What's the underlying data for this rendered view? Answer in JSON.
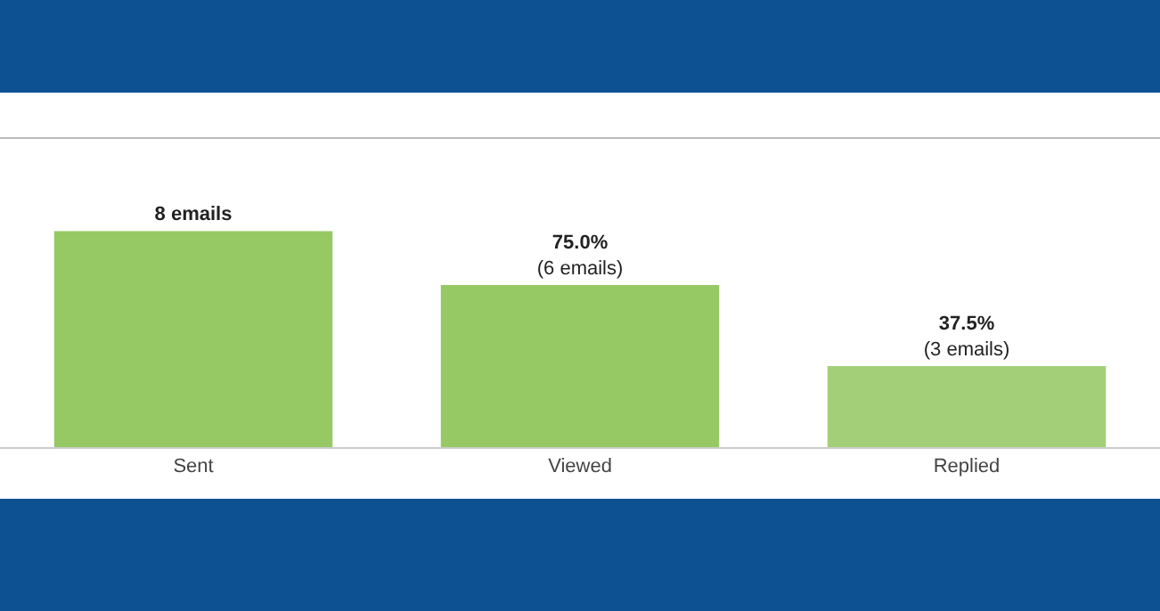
{
  "chart_data": {
    "type": "bar",
    "categories": [
      "Sent",
      "Viewed",
      "Replied"
    ],
    "values": [
      8,
      6,
      3
    ],
    "colors": [
      "#96c964",
      "#96c964",
      "#a3cf78"
    ],
    "value_labels": [
      "8 emails",
      "75.0%\n(6 emails)",
      "37.5%\n(3 emails)"
    ]
  }
}
